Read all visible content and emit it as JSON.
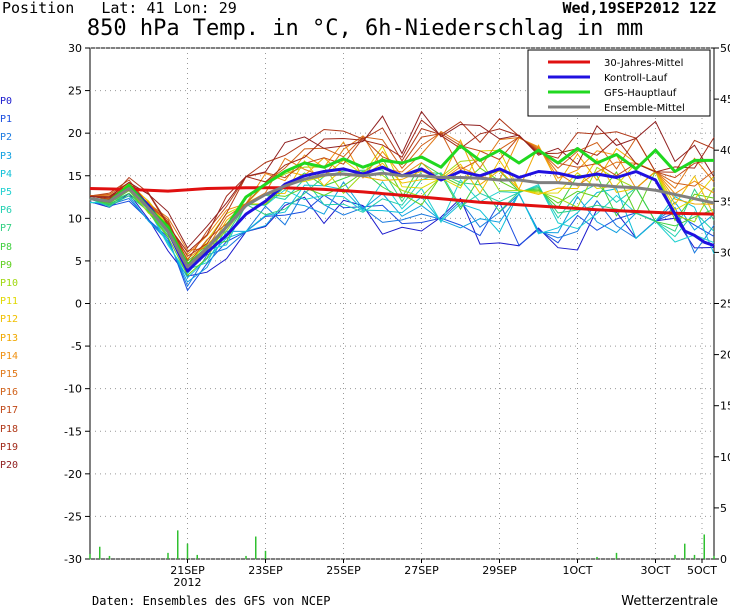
{
  "header": {
    "position_label": "Position",
    "lat_label": "Lat:",
    "lat": "41",
    "lon_label": "Lon:",
    "lon": "29",
    "run": "Wed,19SEP2012 12Z",
    "title": "850 hPa Temp. in °C, 6h-Niederschlag in mm"
  },
  "footer": {
    "source": "Daten: Ensembles des GFS von NCEP",
    "brand": "Wetterzentrale"
  },
  "members": [
    "P0",
    "P1",
    "P2",
    "P3",
    "P4",
    "P5",
    "P6",
    "P7",
    "P8",
    "P9",
    "P10",
    "P11",
    "P12",
    "P13",
    "P14",
    "P15",
    "P16",
    "P17",
    "P18",
    "P19",
    "P20"
  ],
  "member_colors": [
    "#1a1acd",
    "#1a4ee0",
    "#1a7ae0",
    "#10a0e0",
    "#10c0d8",
    "#20d0d0",
    "#20d0b0",
    "#30d080",
    "#40d040",
    "#60d020",
    "#a0d810",
    "#e0d800",
    "#f0c000",
    "#f0a800",
    "#f09010",
    "#e07818",
    "#d06018",
    "#c04818",
    "#b03818",
    "#a02818",
    "#902020"
  ],
  "chart_data": {
    "type": "line",
    "title": "850 hPa Temp. in °C, 6h-Niederschlag in mm",
    "ylim_left": [
      -30,
      30
    ],
    "ylim_right": [
      0,
      50
    ],
    "y_ticks_left": [
      "30",
      "25",
      "20",
      "15",
      "10",
      "5",
      "0",
      "-5",
      "-10",
      "-15",
      "-20",
      "-25",
      "-30"
    ],
    "y_ticks_right": [
      "50",
      "45",
      "40",
      "35",
      "30",
      "25",
      "20",
      "15",
      "10",
      "5",
      "0"
    ],
    "x_tick_labels": [
      "21SEP",
      "23SEP",
      "25SEP",
      "27SEP",
      "29SEP",
      "1OCT",
      "3OCT",
      "5OCT"
    ],
    "x_year_label": "2012",
    "x_range_hours": [
      0,
      384
    ],
    "x_tick_hours": [
      60,
      108,
      156,
      204,
      252,
      300,
      348,
      396
    ],
    "legend": [
      {
        "name": "30-Jahres-Mittel",
        "color": "#e01010"
      },
      {
        "name": "Kontroll-Lauf",
        "color": "#2010e0"
      },
      {
        "name": "GFS-Hauptlauf",
        "color": "#20d820"
      },
      {
        "name": "Ensemble-Mittel",
        "color": "#808080"
      }
    ],
    "series": [
      {
        "name": "30-Jahres-Mittel",
        "color": "#e01010",
        "points": [
          [
            0,
            13.5
          ],
          [
            24,
            13.4
          ],
          [
            48,
            13.2
          ],
          [
            72,
            13.5
          ],
          [
            96,
            13.6
          ],
          [
            120,
            13.6
          ],
          [
            144,
            13.4
          ],
          [
            168,
            13.1
          ],
          [
            192,
            12.7
          ],
          [
            216,
            12.3
          ],
          [
            240,
            11.9
          ],
          [
            264,
            11.6
          ],
          [
            288,
            11.3
          ],
          [
            312,
            11.0
          ],
          [
            336,
            10.8
          ],
          [
            360,
            10.6
          ],
          [
            384,
            10.5
          ]
        ]
      },
      {
        "name": "Kontroll-Lauf",
        "color": "#2010e0",
        "points": [
          [
            0,
            12.3
          ],
          [
            12,
            12.0
          ],
          [
            24,
            13.8
          ],
          [
            36,
            11.5
          ],
          [
            48,
            8.5
          ],
          [
            60,
            3.8
          ],
          [
            72,
            6.0
          ],
          [
            84,
            8.0
          ],
          [
            96,
            10.5
          ],
          [
            108,
            12.0
          ],
          [
            120,
            14.0
          ],
          [
            132,
            15.0
          ],
          [
            144,
            15.5
          ],
          [
            156,
            15.8
          ],
          [
            168,
            15.2
          ],
          [
            180,
            16.0
          ],
          [
            192,
            15.0
          ],
          [
            204,
            15.8
          ],
          [
            216,
            14.5
          ],
          [
            228,
            15.5
          ],
          [
            240,
            15.0
          ],
          [
            252,
            15.8
          ],
          [
            264,
            14.8
          ],
          [
            276,
            15.5
          ],
          [
            288,
            15.3
          ],
          [
            300,
            14.8
          ],
          [
            312,
            15.2
          ],
          [
            324,
            14.8
          ],
          [
            336,
            15.5
          ],
          [
            348,
            14.5
          ],
          [
            354,
            12.5
          ],
          [
            360,
            10.5
          ],
          [
            366,
            8.5
          ],
          [
            372,
            8.0
          ],
          [
            378,
            7.2
          ],
          [
            384,
            6.8
          ]
        ]
      },
      {
        "name": "GFS-Hauptlauf",
        "color": "#20d820",
        "points": [
          [
            0,
            12.3
          ],
          [
            12,
            12.0
          ],
          [
            24,
            13.9
          ],
          [
            36,
            11.2
          ],
          [
            48,
            9.0
          ],
          [
            60,
            4.5
          ],
          [
            72,
            6.5
          ],
          [
            84,
            9.0
          ],
          [
            96,
            12.5
          ],
          [
            108,
            14.0
          ],
          [
            120,
            15.5
          ],
          [
            132,
            16.5
          ],
          [
            144,
            16.0
          ],
          [
            156,
            17.0
          ],
          [
            168,
            16.0
          ],
          [
            180,
            16.8
          ],
          [
            192,
            16.5
          ],
          [
            204,
            17.2
          ],
          [
            216,
            16.0
          ],
          [
            228,
            18.5
          ],
          [
            240,
            16.8
          ],
          [
            252,
            18.0
          ],
          [
            264,
            16.5
          ],
          [
            276,
            18.0
          ],
          [
            288,
            16.5
          ],
          [
            300,
            18.2
          ],
          [
            312,
            16.5
          ],
          [
            324,
            17.5
          ],
          [
            336,
            15.8
          ],
          [
            348,
            18.0
          ],
          [
            360,
            15.5
          ],
          [
            372,
            16.8
          ],
          [
            384,
            16.8
          ]
        ]
      },
      {
        "name": "Ensemble-Mittel",
        "color": "#808080",
        "points": [
          [
            0,
            12.3
          ],
          [
            12,
            12.0
          ],
          [
            24,
            13.5
          ],
          [
            36,
            11.2
          ],
          [
            48,
            8.5
          ],
          [
            60,
            4.3
          ],
          [
            72,
            6.5
          ],
          [
            84,
            9.0
          ],
          [
            96,
            11.5
          ],
          [
            108,
            12.8
          ],
          [
            120,
            13.8
          ],
          [
            132,
            14.6
          ],
          [
            144,
            15.1
          ],
          [
            156,
            15.2
          ],
          [
            168,
            15.0
          ],
          [
            180,
            15.3
          ],
          [
            192,
            15.0
          ],
          [
            204,
            15.0
          ],
          [
            216,
            14.8
          ],
          [
            228,
            14.8
          ],
          [
            240,
            14.7
          ],
          [
            252,
            14.5
          ],
          [
            264,
            14.5
          ],
          [
            276,
            14.2
          ],
          [
            288,
            14.2
          ],
          [
            300,
            14.0
          ],
          [
            312,
            13.9
          ],
          [
            324,
            13.7
          ],
          [
            336,
            13.6
          ],
          [
            348,
            13.3
          ],
          [
            360,
            12.8
          ],
          [
            372,
            12.3
          ],
          [
            384,
            11.8
          ]
        ]
      }
    ],
    "precip": {
      "name": "6h-Niederschlag",
      "points": [
        [
          0,
          0.5
        ],
        [
          6,
          1.2
        ],
        [
          12,
          0.3
        ],
        [
          48,
          0.6
        ],
        [
          54,
          2.8
        ],
        [
          60,
          1.5
        ],
        [
          66,
          0.4
        ],
        [
          96,
          0.3
        ],
        [
          102,
          2.2
        ],
        [
          108,
          0.8
        ],
        [
          312,
          0.2
        ],
        [
          324,
          0.6
        ],
        [
          360,
          0.4
        ],
        [
          366,
          1.5
        ],
        [
          372,
          0.4
        ],
        [
          378,
          2.4
        ],
        [
          384,
          0.3
        ]
      ]
    }
  }
}
